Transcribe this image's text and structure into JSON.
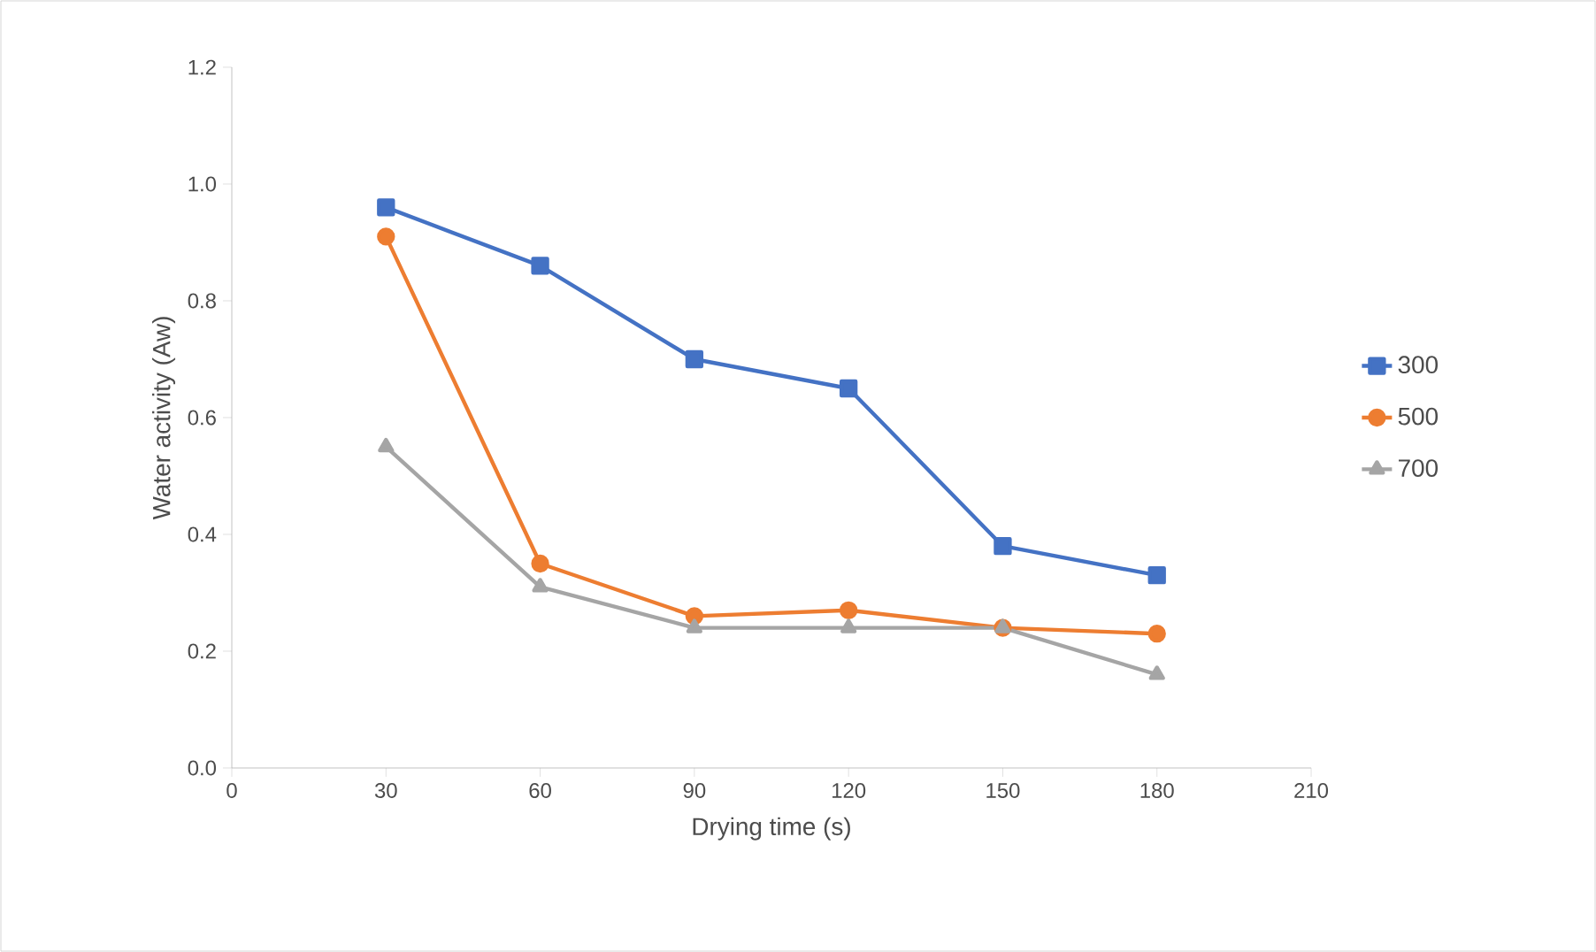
{
  "chart_data": {
    "type": "line",
    "xlabel": "Drying time (s)",
    "ylabel": "Water activity (Aw)",
    "x": [
      30,
      60,
      90,
      120,
      150,
      180
    ],
    "xlim": [
      0,
      210
    ],
    "xticks": [
      0,
      30,
      60,
      90,
      120,
      150,
      180,
      210
    ],
    "ylim": [
      0,
      1.2
    ],
    "yticks": [
      {
        "value": 0,
        "label": "0.0"
      },
      {
        "value": 0.2,
        "label": "0.2"
      },
      {
        "value": 0.4,
        "label": "0.4"
      },
      {
        "value": 0.6,
        "label": "0.6"
      },
      {
        "value": 0.8,
        "label": "0.8"
      },
      {
        "value": 1.0,
        "label": "1.0"
      },
      {
        "value": 1.2,
        "label": "1.2"
      }
    ],
    "legend": "right",
    "series": [
      {
        "name": "300",
        "color": "#4472c4",
        "marker": "square",
        "values": [
          0.96,
          0.86,
          0.7,
          0.65,
          0.38,
          0.33
        ]
      },
      {
        "name": "500",
        "color": "#ed7d31",
        "marker": "circle",
        "values": [
          0.91,
          0.35,
          0.26,
          0.27,
          0.24,
          0.23
        ]
      },
      {
        "name": "700",
        "color": "#a5a5a5",
        "marker": "triangle",
        "values": [
          0.55,
          0.31,
          0.24,
          0.24,
          0.24,
          0.16
        ]
      }
    ]
  }
}
